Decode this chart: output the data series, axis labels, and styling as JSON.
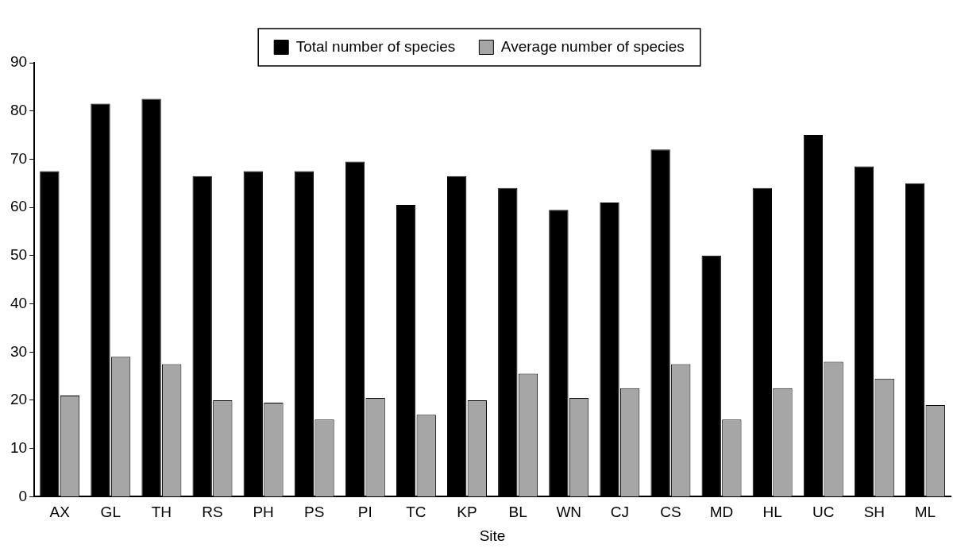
{
  "chart_data": {
    "type": "bar",
    "xlabel": "Site",
    "categories": [
      "AX",
      "GL",
      "TH",
      "RS",
      "PH",
      "PS",
      "PI",
      "TC",
      "KP",
      "BL",
      "WN",
      "CJ",
      "CS",
      "MD",
      "HL",
      "UC",
      "SH",
      "ML"
    ],
    "series": [
      {
        "name": "Total number of species",
        "color": "#000000",
        "values": [
          67.5,
          81.5,
          82.5,
          66.5,
          67.5,
          67.5,
          69.5,
          60.5,
          66.5,
          64,
          59.5,
          61,
          72,
          50,
          64,
          75,
          68.5,
          65
        ]
      },
      {
        "name": "Average number of species",
        "color": "#a6a6a6",
        "values": [
          21,
          29,
          27.5,
          20,
          19.5,
          16,
          20.5,
          17,
          20,
          25.5,
          20.5,
          22.5,
          27.5,
          16,
          22.5,
          28,
          24.5,
          19
        ]
      }
    ],
    "ylim": [
      0,
      90
    ],
    "yticks": [
      0,
      10,
      20,
      30,
      40,
      50,
      60,
      70,
      80,
      90
    ],
    "grid": false,
    "legend": "top"
  }
}
